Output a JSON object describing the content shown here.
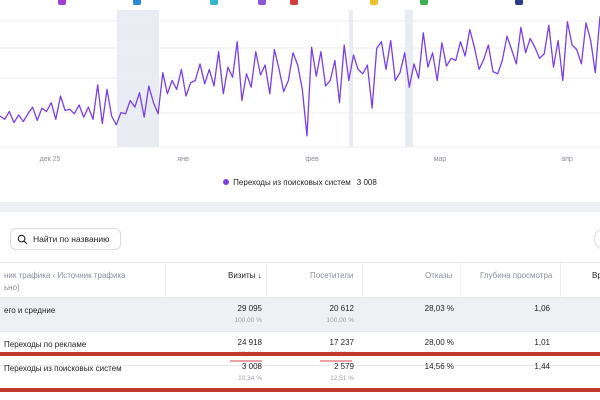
{
  "legend_chip_colors": [
    "#a13fd0",
    "#2a8ad8",
    "#35b5c8",
    "#8b57d8",
    "#d03b3b",
    "#f0c030",
    "#3cb04a",
    "#2a3d8c"
  ],
  "chart": {
    "x_ticks": [
      "дек 25",
      "янв",
      "фев",
      "мар",
      "апр"
    ],
    "legend_label": "Переходы из поисковых систем",
    "legend_value": "3 008",
    "line_color": "#7b3fe4",
    "highlight_color": "#e8ebf2"
  },
  "chart_data": {
    "type": "line",
    "series": [
      {
        "name": "Переходы из поисковых систем",
        "values": [
          28,
          25,
          32,
          22,
          29,
          23,
          30,
          36,
          24,
          35,
          32,
          40,
          25,
          46,
          33,
          34,
          30,
          38,
          27,
          36,
          25,
          56,
          21,
          52,
          28,
          20,
          31,
          30,
          42,
          36,
          49,
          27,
          55,
          40,
          30,
          67,
          48,
          60,
          52,
          70,
          46,
          58,
          60,
          75,
          57,
          70,
          55,
          86,
          48,
          72,
          63,
          95,
          42,
          66,
          54,
          86,
          65,
          74,
          48,
          88,
          70,
          50,
          60,
          85,
          74,
          52,
          10,
          90,
          64,
          86,
          55,
          60,
          78,
          40,
          92,
          60,
          83,
          70,
          66,
          74,
          35,
          89,
          95,
          70,
          96,
          60,
          67,
          85,
          54,
          75,
          62,
          103,
          72,
          85,
          60,
          94,
          73,
          80,
          78,
          95,
          82,
          106,
          90,
          70,
          79,
          92,
          68,
          66,
          78,
          100,
          88,
          75,
          108,
          85,
          98,
          90,
          80,
          84,
          110,
          72,
          96,
          60,
          113,
          92,
          88,
          75,
          112,
          96,
          67,
          118
        ]
      }
    ]
  },
  "search": {
    "label": "Найти по названию"
  },
  "table": {
    "headers": {
      "source": "ник трафика ‹ Источник трафика",
      "source_line2": "ьно)",
      "visits": "Визиты ↓",
      "visitors": "Посетители",
      "bounces": "Отказы",
      "depth": "Глубина просмотра",
      "extra": "Вр"
    },
    "rows": [
      {
        "name": "его и средние",
        "visits": "29 095",
        "visits_pct": "100,00 %",
        "visitors": "20 612",
        "visitors_pct": "100,00 %",
        "bounces": "28,03 %",
        "depth": "1,06"
      },
      {
        "name": "Переходы по рекламе",
        "visits": "24 918",
        "visits_pct": "85,64 %",
        "visitors": "17 237",
        "visitors_pct": "83,63 %",
        "bounces": "28,00 %",
        "depth": "1,01"
      },
      {
        "name": "Переходы из поисковых систем",
        "visits": "3 008",
        "visits_pct": "10,34 %",
        "visitors": "2 579",
        "visitors_pct": "12,51 %",
        "bounces": "14,56 %",
        "depth": "1,44"
      }
    ]
  }
}
